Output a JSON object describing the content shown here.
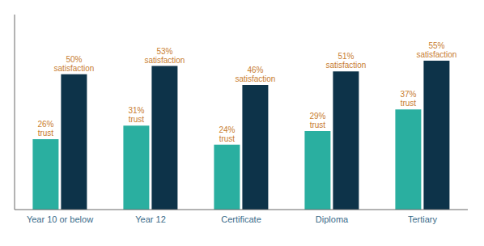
{
  "chart_data": {
    "type": "bar",
    "categories": [
      "Year 10 or below",
      "Year 12",
      "Certificate",
      "Diploma",
      "Tertiary"
    ],
    "series": [
      {
        "name": "trust",
        "color": "#2aafa0",
        "values": [
          26,
          31,
          24,
          29,
          37
        ],
        "value_labels": [
          "26%\ntrust",
          "31%\ntrust",
          "24%\ntrust",
          "29%\ntrust",
          "37%\ntrust"
        ]
      },
      {
        "name": "satisfaction",
        "color": "#0d3349",
        "values": [
          50,
          53,
          46,
          51,
          55
        ],
        "value_labels": [
          "50%\nsatisfaction",
          "53%\nsatisfaction",
          "46%\nsatisfaction",
          "51%\nsatisfaction",
          "55%\nsatisfaction"
        ]
      }
    ],
    "ylim": [
      0,
      72
    ],
    "data_labels": true,
    "tick_labels": "x"
  }
}
